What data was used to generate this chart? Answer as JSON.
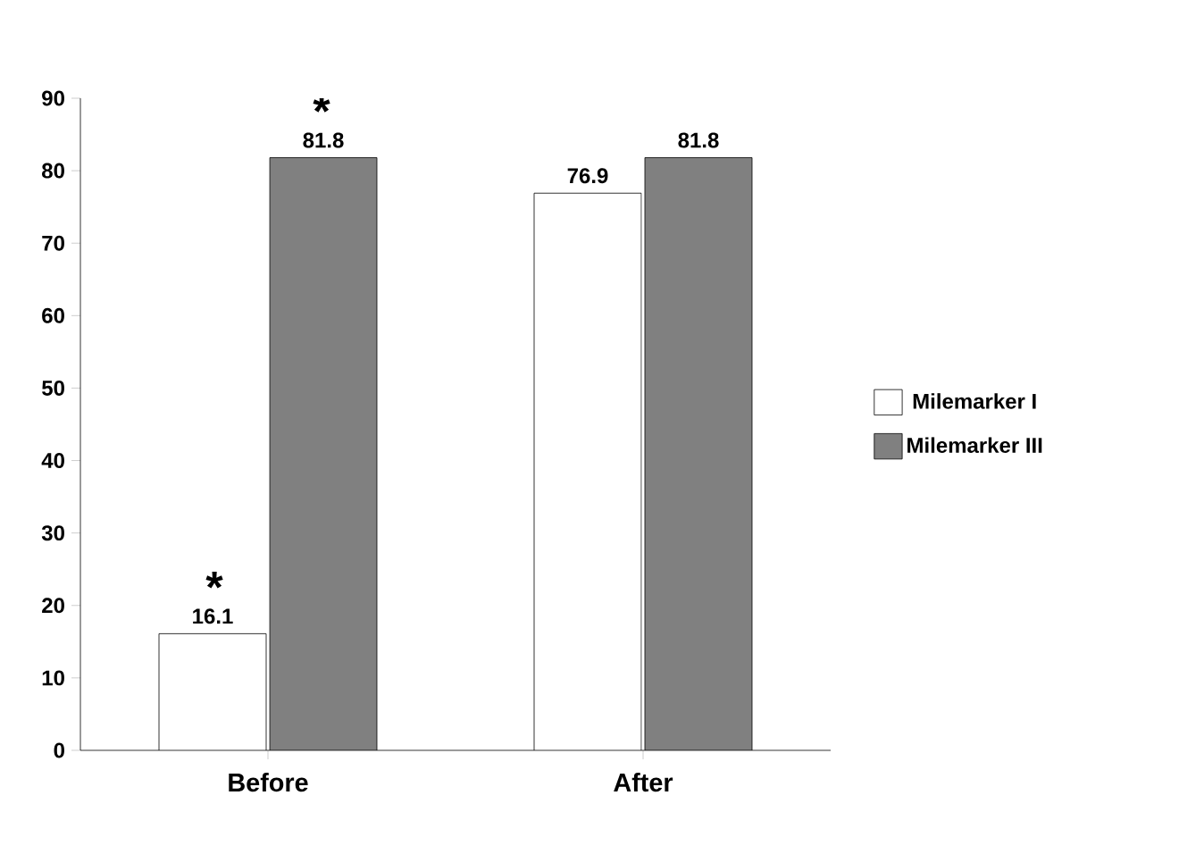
{
  "chart_data": {
    "type": "bar",
    "categories": [
      "Before",
      "After"
    ],
    "series": [
      {
        "name": "Milemarker I",
        "color": "#ffffff",
        "values": [
          16.1,
          76.9
        ]
      },
      {
        "name": "Milemarker III",
        "color": "#808080",
        "values": [
          81.8,
          81.8
        ]
      }
    ],
    "ylim": [
      0,
      90
    ],
    "yticks": [
      0,
      10,
      20,
      30,
      40,
      50,
      60,
      70,
      80,
      90
    ],
    "data_labels": true,
    "legend": "right",
    "grid": false,
    "annotations": [
      {
        "text": "*",
        "x": "Before",
        "y": 16.1
      },
      {
        "text": "*",
        "x": "Before",
        "y": 81.8
      }
    ]
  }
}
